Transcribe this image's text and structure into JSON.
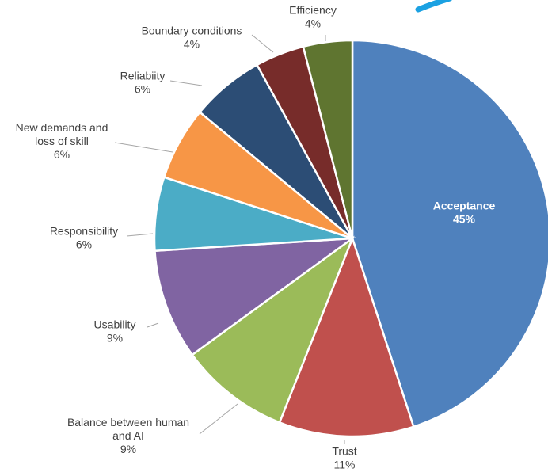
{
  "chart_data": {
    "type": "pie",
    "title": "",
    "start_angle_deg": 0,
    "direction": "clockwise",
    "slices": [
      {
        "label": "Acceptance",
        "lines": [
          "Acceptance"
        ],
        "pct_label": "45%",
        "value": 45,
        "color": "#4f81bd",
        "label_inside": true
      },
      {
        "label": "Trust",
        "lines": [
          "Trust"
        ],
        "pct_label": "11%",
        "value": 11,
        "color": "#c0504d",
        "label_inside": false
      },
      {
        "label": "Balance between human and AI",
        "lines": [
          "Balance between human",
          "and AI"
        ],
        "pct_label": "9%",
        "value": 9,
        "color": "#9bbb59",
        "label_inside": false
      },
      {
        "label": "Usability",
        "lines": [
          "Usability"
        ],
        "pct_label": "9%",
        "value": 9,
        "color": "#8064a2",
        "label_inside": false
      },
      {
        "label": "Responsibility",
        "lines": [
          "Responsibility"
        ],
        "pct_label": "6%",
        "value": 6,
        "color": "#4bacc6",
        "label_inside": false
      },
      {
        "label": "New demands and loss of skill",
        "lines": [
          "New demands and",
          "loss of skill"
        ],
        "pct_label": "6%",
        "value": 6,
        "color": "#f79646",
        "label_inside": false
      },
      {
        "label": "Reliabiity",
        "lines": [
          "Reliabiity"
        ],
        "pct_label": "6%",
        "value": 6,
        "color": "#2c4d75",
        "label_inside": false
      },
      {
        "label": "Boundary conditions",
        "lines": [
          "Boundary conditions"
        ],
        "pct_label": "4%",
        "value": 4,
        "color": "#772c2a",
        "label_inside": false
      },
      {
        "label": "Efficiency",
        "lines": [
          "Efficiency"
        ],
        "pct_label": "4%",
        "value": 4,
        "color": "#5f7530",
        "label_inside": false
      }
    ]
  }
}
